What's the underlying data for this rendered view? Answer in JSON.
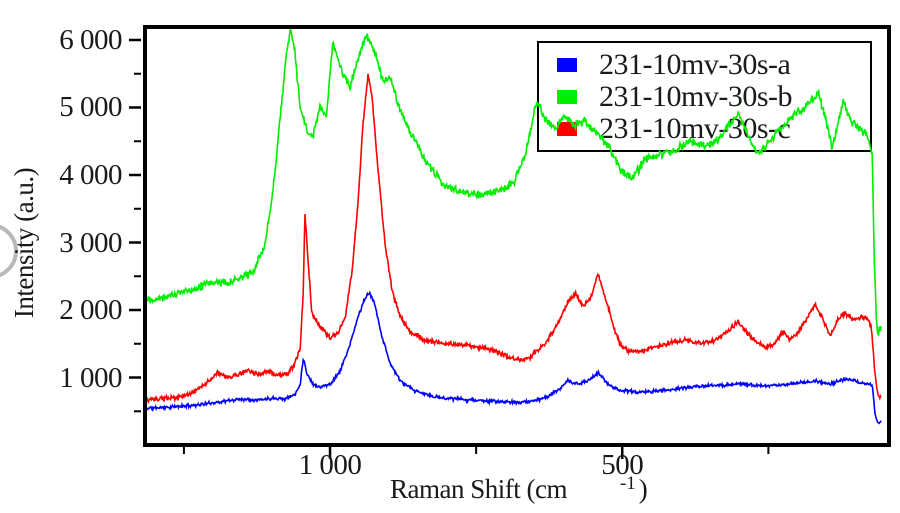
{
  "ylabel_note": "rotated y axis caption",
  "watermark": {
    "shape": "partial-circle",
    "color": "#b9b9b9"
  },
  "chart_data": {
    "type": "line",
    "title": "",
    "xlabel": "Raman Shift (cm-1)",
    "ylabel": "Intensity (a.u.)",
    "grid": false,
    "x_axis": {
      "title_main": "Raman Shift (cm",
      "title_sup": "-1",
      "title_close": ")",
      "reversed": true,
      "range_left_to_right": [
        1320,
        47
      ],
      "ticks_major": [
        {
          "value": 1000,
          "label": "1 000"
        },
        {
          "value": 500,
          "label": "500"
        }
      ],
      "ticks_minor": [
        1250,
        750,
        250
      ]
    },
    "y_axis": {
      "range": [
        30,
        6222
      ],
      "ticks_major": [
        {
          "value": 1000,
          "label": "1 000"
        },
        {
          "value": 2000,
          "label": "2 000"
        },
        {
          "value": 3000,
          "label": "3 000"
        },
        {
          "value": 4000,
          "label": "4 000"
        },
        {
          "value": 5000,
          "label": "5 000"
        },
        {
          "value": 6000,
          "label": "6 000"
        }
      ],
      "ticks_minor": [
        500,
        1500,
        2500,
        3500,
        4500,
        5500
      ]
    },
    "legend": {
      "position": "top-right",
      "entries": [
        {
          "label": "231-10mv-30s-a",
          "color": "#0000ff"
        },
        {
          "label": "231-10mv-30s-b",
          "color": "#00ee00"
        },
        {
          "label": "231-10mv-30s-c",
          "color": "#ff0000"
        }
      ]
    },
    "series": [
      {
        "name": "231-10mv-30s-a",
        "color": "#0000ff",
        "noise": 30,
        "seed": 11,
        "points": [
          [
            1320,
            545
          ],
          [
            1274,
            560
          ],
          [
            1222,
            600
          ],
          [
            1188,
            640
          ],
          [
            1154,
            680
          ],
          [
            1120,
            670
          ],
          [
            1094,
            700
          ],
          [
            1077,
            680
          ],
          [
            1060,
            750
          ],
          [
            1051,
            900
          ],
          [
            1046,
            1290
          ],
          [
            1039,
            1050
          ],
          [
            1029,
            900
          ],
          [
            1017,
            860
          ],
          [
            1000,
            900
          ],
          [
            983,
            1090
          ],
          [
            966,
            1480
          ],
          [
            952,
            1900
          ],
          [
            940,
            2180
          ],
          [
            932,
            2250
          ],
          [
            923,
            2080
          ],
          [
            911,
            1600
          ],
          [
            897,
            1210
          ],
          [
            880,
            950
          ],
          [
            855,
            800
          ],
          [
            820,
            710
          ],
          [
            778,
            680
          ],
          [
            726,
            650
          ],
          [
            684,
            630
          ],
          [
            658,
            645
          ],
          [
            632,
            700
          ],
          [
            610,
            810
          ],
          [
            593,
            950
          ],
          [
            576,
            900
          ],
          [
            559,
            950
          ],
          [
            541,
            1070
          ],
          [
            524,
            900
          ],
          [
            504,
            810
          ],
          [
            469,
            780
          ],
          [
            427,
            810
          ],
          [
            384,
            860
          ],
          [
            341,
            880
          ],
          [
            299,
            910
          ],
          [
            256,
            870
          ],
          [
            213,
            905
          ],
          [
            170,
            950
          ],
          [
            144,
            905
          ],
          [
            119,
            975
          ],
          [
            93,
            930
          ],
          [
            79,
            900
          ],
          [
            72,
            880
          ],
          [
            67,
            420
          ],
          [
            62,
            330
          ],
          [
            57,
            345
          ]
        ]
      },
      {
        "name": "231-10mv-30s-b",
        "color": "#00ee00",
        "noise": 75,
        "seed": 22,
        "points": [
          [
            1320,
            2160
          ],
          [
            1291,
            2180
          ],
          [
            1257,
            2250
          ],
          [
            1222,
            2350
          ],
          [
            1197,
            2420
          ],
          [
            1171,
            2400
          ],
          [
            1146,
            2500
          ],
          [
            1128,
            2600
          ],
          [
            1111,
            3000
          ],
          [
            1099,
            3650
          ],
          [
            1086,
            4800
          ],
          [
            1075,
            5750
          ],
          [
            1068,
            6170
          ],
          [
            1060,
            5800
          ],
          [
            1051,
            5000
          ],
          [
            1038,
            4620
          ],
          [
            1029,
            4570
          ],
          [
            1017,
            5030
          ],
          [
            1007,
            4830
          ],
          [
            995,
            5960
          ],
          [
            983,
            5600
          ],
          [
            966,
            5300
          ],
          [
            952,
            5750
          ],
          [
            938,
            6070
          ],
          [
            923,
            5800
          ],
          [
            909,
            5360
          ],
          [
            897,
            5440
          ],
          [
            880,
            4960
          ],
          [
            860,
            4600
          ],
          [
            837,
            4200
          ],
          [
            807,
            3880
          ],
          [
            778,
            3760
          ],
          [
            743,
            3700
          ],
          [
            709,
            3760
          ],
          [
            684,
            3920
          ],
          [
            666,
            4300
          ],
          [
            646,
            5100
          ],
          [
            632,
            4830
          ],
          [
            615,
            4700
          ],
          [
            598,
            4860
          ],
          [
            581,
            4750
          ],
          [
            564,
            4800
          ],
          [
            538,
            4560
          ],
          [
            521,
            4400
          ],
          [
            504,
            4080
          ],
          [
            481,
            3950
          ],
          [
            461,
            4240
          ],
          [
            435,
            4300
          ],
          [
            410,
            4350
          ],
          [
            384,
            4500
          ],
          [
            358,
            4420
          ],
          [
            333,
            4550
          ],
          [
            302,
            4920
          ],
          [
            285,
            4600
          ],
          [
            268,
            4290
          ],
          [
            239,
            4600
          ],
          [
            204,
            4900
          ],
          [
            179,
            5080
          ],
          [
            165,
            5230
          ],
          [
            151,
            4800
          ],
          [
            141,
            4390
          ],
          [
            122,
            5070
          ],
          [
            107,
            4780
          ],
          [
            93,
            4680
          ],
          [
            85,
            4640
          ],
          [
            78,
            4500
          ],
          [
            72,
            4300
          ],
          [
            69,
            2800
          ],
          [
            65,
            1800
          ],
          [
            62,
            1680
          ],
          [
            57,
            1760
          ]
        ]
      },
      {
        "name": "231-10mv-30s-c",
        "color": "#ff0000",
        "noise": 45,
        "seed": 33,
        "points": [
          [
            1320,
            660
          ],
          [
            1291,
            680
          ],
          [
            1265,
            700
          ],
          [
            1240,
            755
          ],
          [
            1214,
            900
          ],
          [
            1192,
            1070
          ],
          [
            1175,
            990
          ],
          [
            1154,
            1060
          ],
          [
            1140,
            1110
          ],
          [
            1123,
            1030
          ],
          [
            1106,
            1090
          ],
          [
            1089,
            1030
          ],
          [
            1072,
            1060
          ],
          [
            1060,
            1200
          ],
          [
            1051,
            1450
          ],
          [
            1046,
            2200
          ],
          [
            1043,
            3430
          ],
          [
            1038,
            2800
          ],
          [
            1031,
            1950
          ],
          [
            1021,
            1800
          ],
          [
            1012,
            1720
          ],
          [
            1000,
            1590
          ],
          [
            986,
            1650
          ],
          [
            974,
            1900
          ],
          [
            962,
            2600
          ],
          [
            952,
            3600
          ],
          [
            944,
            4700
          ],
          [
            935,
            5480
          ],
          [
            928,
            5150
          ],
          [
            918,
            4100
          ],
          [
            906,
            3000
          ],
          [
            894,
            2300
          ],
          [
            880,
            1900
          ],
          [
            863,
            1680
          ],
          [
            837,
            1550
          ],
          [
            803,
            1500
          ],
          [
            769,
            1480
          ],
          [
            726,
            1420
          ],
          [
            692,
            1300
          ],
          [
            675,
            1260
          ],
          [
            658,
            1300
          ],
          [
            632,
            1500
          ],
          [
            610,
            1800
          ],
          [
            593,
            2120
          ],
          [
            581,
            2250
          ],
          [
            569,
            2070
          ],
          [
            555,
            2160
          ],
          [
            541,
            2530
          ],
          [
            529,
            2200
          ],
          [
            517,
            1800
          ],
          [
            504,
            1500
          ],
          [
            490,
            1400
          ],
          [
            470,
            1380
          ],
          [
            444,
            1450
          ],
          [
            418,
            1520
          ],
          [
            392,
            1560
          ],
          [
            367,
            1500
          ],
          [
            341,
            1550
          ],
          [
            316,
            1700
          ],
          [
            302,
            1830
          ],
          [
            290,
            1700
          ],
          [
            273,
            1550
          ],
          [
            256,
            1450
          ],
          [
            239,
            1500
          ],
          [
            225,
            1680
          ],
          [
            213,
            1550
          ],
          [
            196,
            1700
          ],
          [
            170,
            2090
          ],
          [
            156,
            1850
          ],
          [
            144,
            1620
          ],
          [
            131,
            1850
          ],
          [
            119,
            1955
          ],
          [
            105,
            1850
          ],
          [
            93,
            1900
          ],
          [
            81,
            1880
          ],
          [
            74,
            1750
          ],
          [
            67,
            1000
          ],
          [
            62,
            720
          ],
          [
            57,
            700
          ]
        ]
      }
    ]
  }
}
